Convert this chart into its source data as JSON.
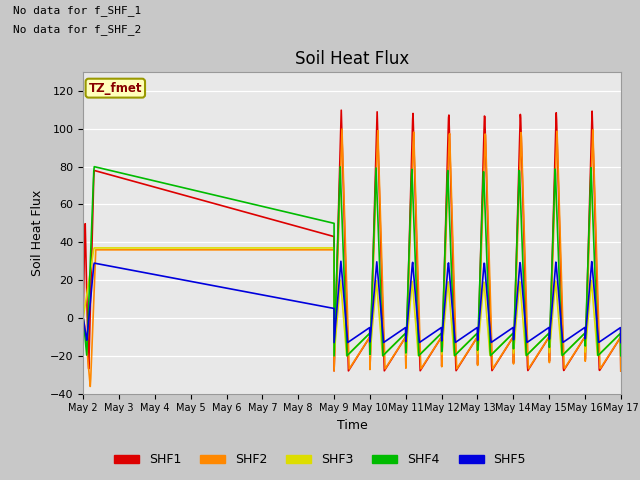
{
  "title": "Soil Heat Flux",
  "xlabel": "Time",
  "ylabel": "Soil Heat Flux",
  "ylim": [
    -40,
    130
  ],
  "xlim": [
    0,
    15
  ],
  "annotation1": "No data for f_SHF_1",
  "annotation2": "No data for f_SHF_2",
  "tz_label": "TZ_fmet",
  "fig_facecolor": "#c8c8c8",
  "plot_facecolor": "#e8e8e8",
  "colors": {
    "SHF1": "#dd0000",
    "SHF2": "#ff8800",
    "SHF3": "#dddd00",
    "SHF4": "#00bb00",
    "SHF5": "#0000dd"
  },
  "yticks": [
    -40,
    -20,
    0,
    20,
    40,
    60,
    80,
    100,
    120
  ],
  "xtick_labels": [
    "May 2",
    "May 3",
    "May 4",
    "May 5",
    "May 6",
    "May 7",
    "May 8",
    "May 9",
    "May 10",
    "May 11",
    "May 12",
    "May 13",
    "May 14",
    "May 15",
    "May 16",
    "May 17"
  ],
  "xtick_positions": [
    0,
    1,
    2,
    3,
    4,
    5,
    6,
    7,
    8,
    9,
    10,
    11,
    12,
    13,
    14,
    15
  ]
}
